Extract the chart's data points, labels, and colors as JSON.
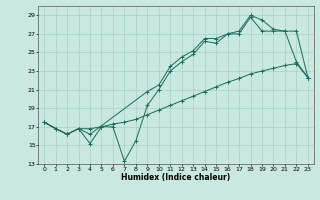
{
  "xlabel": "Humidex (Indice chaleur)",
  "bg_color": "#c8e8e0",
  "grid_color": "#aacfca",
  "line_color": "#1a6b5a",
  "xlim": [
    -0.5,
    23.5
  ],
  "ylim": [
    13,
    30
  ],
  "yticks": [
    13,
    15,
    17,
    19,
    21,
    23,
    25,
    27,
    29
  ],
  "xticks": [
    0,
    1,
    2,
    3,
    4,
    5,
    6,
    7,
    8,
    9,
    10,
    11,
    12,
    13,
    14,
    15,
    16,
    17,
    18,
    19,
    20,
    21,
    22,
    23
  ],
  "line1_x": [
    0,
    1,
    2,
    3,
    4,
    5,
    6,
    7,
    8,
    9,
    10,
    11,
    12,
    13,
    14,
    15,
    16,
    17,
    18,
    19,
    20,
    21,
    22,
    23
  ],
  "line1_y": [
    17.5,
    16.8,
    16.2,
    16.8,
    15.2,
    17.0,
    17.0,
    13.3,
    15.5,
    19.3,
    21.0,
    23.0,
    24.0,
    24.8,
    26.2,
    26.0,
    27.0,
    27.0,
    28.8,
    27.3,
    27.3,
    27.3,
    24.0,
    22.3
  ],
  "line2_x": [
    0,
    1,
    2,
    3,
    4,
    5,
    6,
    7,
    8,
    9,
    10,
    11,
    12,
    13,
    14,
    15,
    16,
    17,
    18,
    19,
    20,
    21,
    22,
    23
  ],
  "line2_y": [
    17.5,
    16.8,
    16.2,
    16.8,
    16.8,
    17.0,
    17.3,
    17.5,
    17.8,
    18.3,
    18.8,
    19.3,
    19.8,
    20.3,
    20.8,
    21.3,
    21.8,
    22.2,
    22.7,
    23.0,
    23.3,
    23.6,
    23.8,
    22.3
  ],
  "line3_x": [
    0,
    2,
    3,
    4,
    9,
    10,
    11,
    12,
    13,
    14,
    15,
    16,
    17,
    18,
    19,
    20,
    21,
    22,
    23
  ],
  "line3_y": [
    17.5,
    16.2,
    16.8,
    16.2,
    20.8,
    21.5,
    23.5,
    24.5,
    25.2,
    26.5,
    26.5,
    27.0,
    27.3,
    29.0,
    28.5,
    27.5,
    27.3,
    27.3,
    22.3
  ]
}
